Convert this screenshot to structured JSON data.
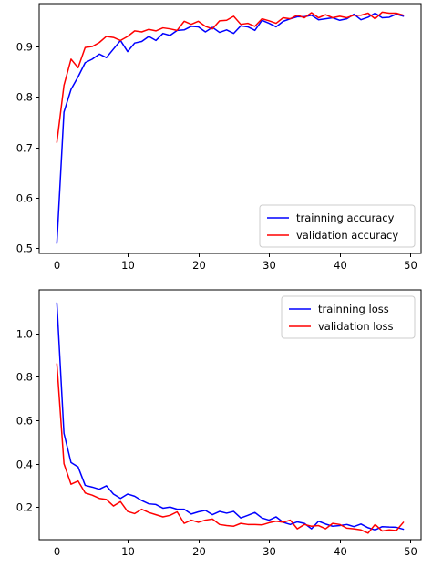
{
  "chart_data": [
    {
      "type": "line",
      "title": "",
      "xlabel": "",
      "ylabel": "",
      "xlim": [
        -2.5,
        51.5
      ],
      "ylim": [
        0.49,
        0.985
      ],
      "xticks": [
        0,
        10,
        20,
        30,
        40,
        50
      ],
      "yticks": [
        0.5,
        0.6,
        0.7,
        0.8,
        0.9
      ],
      "legend_position": "lower-right",
      "grid": false,
      "x": [
        0,
        1,
        2,
        3,
        4,
        5,
        6,
        7,
        8,
        9,
        10,
        11,
        12,
        13,
        14,
        15,
        16,
        17,
        18,
        19,
        20,
        21,
        22,
        23,
        24,
        25,
        26,
        27,
        28,
        29,
        30,
        31,
        32,
        33,
        34,
        35,
        36,
        37,
        38,
        39,
        40,
        41,
        42,
        43,
        44,
        45,
        46,
        47,
        48,
        49
      ],
      "series": [
        {
          "name": "trainning accuracy",
          "color": "#0000ff",
          "values": [
            0.51,
            0.77,
            0.815,
            0.84,
            0.868,
            0.875,
            0.885,
            0.878,
            0.895,
            0.912,
            0.89,
            0.907,
            0.91,
            0.92,
            0.912,
            0.926,
            0.922,
            0.932,
            0.933,
            0.94,
            0.939,
            0.929,
            0.938,
            0.928,
            0.933,
            0.926,
            0.941,
            0.939,
            0.932,
            0.952,
            0.946,
            0.939,
            0.95,
            0.955,
            0.959,
            0.959,
            0.962,
            0.953,
            0.955,
            0.957,
            0.952,
            0.955,
            0.964,
            0.953,
            0.958,
            0.966,
            0.957,
            0.958,
            0.964,
            0.96
          ]
        },
        {
          "name": "validation accuracy",
          "color": "#ff0000",
          "values": [
            0.71,
            0.823,
            0.875,
            0.858,
            0.898,
            0.9,
            0.908,
            0.92,
            0.918,
            0.912,
            0.92,
            0.931,
            0.929,
            0.934,
            0.931,
            0.937,
            0.935,
            0.932,
            0.95,
            0.944,
            0.95,
            0.94,
            0.935,
            0.951,
            0.952,
            0.96,
            0.944,
            0.946,
            0.94,
            0.955,
            0.951,
            0.946,
            0.957,
            0.955,
            0.962,
            0.957,
            0.967,
            0.957,
            0.963,
            0.957,
            0.96,
            0.957,
            0.962,
            0.962,
            0.966,
            0.955,
            0.968,
            0.966,
            0.966,
            0.962
          ]
        }
      ]
    },
    {
      "type": "line",
      "title": "",
      "xlabel": "",
      "ylabel": "",
      "xlim": [
        -2.5,
        51.5
      ],
      "ylim": [
        0.05,
        1.2
      ],
      "xticks": [
        0,
        10,
        20,
        30,
        40,
        50
      ],
      "yticks": [
        0.2,
        0.4,
        0.6,
        0.8,
        1.0
      ],
      "legend_position": "upper-right",
      "grid": false,
      "x": [
        0,
        1,
        2,
        3,
        4,
        5,
        6,
        7,
        8,
        9,
        10,
        11,
        12,
        13,
        14,
        15,
        16,
        17,
        18,
        19,
        20,
        21,
        22,
        23,
        24,
        25,
        26,
        27,
        28,
        29,
        30,
        31,
        32,
        33,
        34,
        35,
        36,
        37,
        38,
        39,
        40,
        41,
        42,
        43,
        44,
        45,
        46,
        47,
        48,
        49
      ],
      "series": [
        {
          "name": "trainning loss",
          "color": "#0000ff",
          "values": [
            1.14,
            0.54,
            0.405,
            0.385,
            0.3,
            0.292,
            0.282,
            0.298,
            0.26,
            0.24,
            0.26,
            0.25,
            0.23,
            0.215,
            0.212,
            0.195,
            0.2,
            0.19,
            0.19,
            0.168,
            0.178,
            0.185,
            0.165,
            0.18,
            0.172,
            0.18,
            0.15,
            0.162,
            0.175,
            0.15,
            0.14,
            0.155,
            0.13,
            0.12,
            0.132,
            0.125,
            0.1,
            0.135,
            0.122,
            0.112,
            0.115,
            0.12,
            0.11,
            0.122,
            0.105,
            0.095,
            0.11,
            0.108,
            0.107,
            0.098
          ]
        },
        {
          "name": "validation loss",
          "color": "#ff0000",
          "values": [
            0.86,
            0.4,
            0.305,
            0.32,
            0.265,
            0.255,
            0.24,
            0.235,
            0.205,
            0.225,
            0.18,
            0.17,
            0.19,
            0.175,
            0.165,
            0.155,
            0.162,
            0.178,
            0.125,
            0.14,
            0.13,
            0.14,
            0.145,
            0.12,
            0.115,
            0.112,
            0.125,
            0.12,
            0.12,
            0.118,
            0.128,
            0.135,
            0.13,
            0.14,
            0.1,
            0.12,
            0.112,
            0.115,
            0.1,
            0.125,
            0.12,
            0.103,
            0.1,
            0.095,
            0.08,
            0.12,
            0.09,
            0.095,
            0.092,
            0.13
          ]
        }
      ]
    }
  ]
}
